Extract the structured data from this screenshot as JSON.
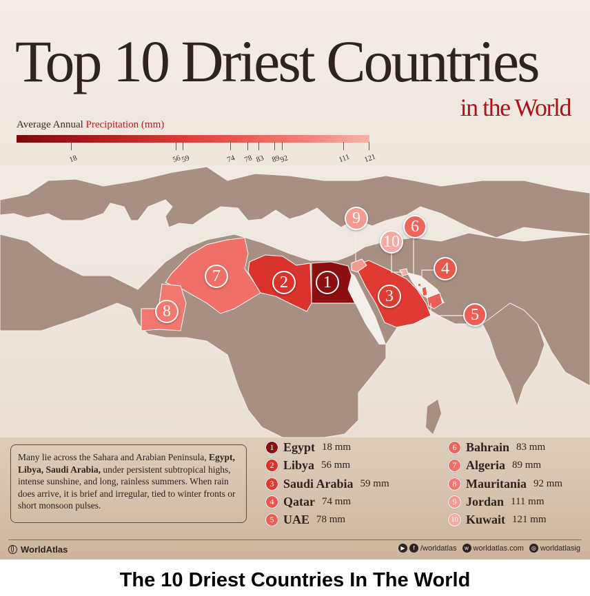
{
  "title": {
    "main": "Top 10 Driest Countries",
    "sub": "in the World"
  },
  "legend": {
    "label_prefix": "Average Annual",
    "label_accent": "Precipitation (mm)",
    "ticks": [
      "18",
      "56",
      "59",
      "74",
      "78",
      "83",
      "89",
      "92",
      "111",
      "121"
    ],
    "scale_min": 0,
    "scale_max": 121
  },
  "map": {
    "land_color": "#a88f84",
    "water_color": "#f3eeea",
    "markers": [
      {
        "rank": "1",
        "country": "Egypt"
      },
      {
        "rank": "2",
        "country": "Libya"
      },
      {
        "rank": "3",
        "country": "Saudi Arabia"
      },
      {
        "rank": "4",
        "country": "Qatar"
      },
      {
        "rank": "5",
        "country": "UAE"
      },
      {
        "rank": "6",
        "country": "Bahrain"
      },
      {
        "rank": "7",
        "country": "Algeria"
      },
      {
        "rank": "8",
        "country": "Mauritania"
      },
      {
        "rank": "9",
        "country": "Jordan"
      },
      {
        "rank": "10",
        "country": "Kuwait"
      }
    ]
  },
  "info": {
    "text_before": "Many lie across the Sahara and Arabian Peninsula, ",
    "bold": "Egypt, Libya, Saudi Arabia,",
    "text_after": " under persistent subtropical highs, intense sunshine, and long, rainless summers. When rain does arrive, it is brief and irregular, tied to winter fronts or short monsoon pulses."
  },
  "ranking": [
    {
      "rank": "1",
      "country": "Egypt",
      "value": "18 mm",
      "color": "#8e0f0f"
    },
    {
      "rank": "2",
      "country": "Libya",
      "value": "56 mm",
      "color": "#d9332c"
    },
    {
      "rank": "3",
      "country": "Saudi Arabia",
      "value": "59 mm",
      "color": "#df3b33"
    },
    {
      "rank": "4",
      "country": "Qatar",
      "value": "74 mm",
      "color": "#e9564d"
    },
    {
      "rank": "5",
      "country": "UAE",
      "value": "78 mm",
      "color": "#ec5e55"
    },
    {
      "rank": "6",
      "country": "Bahrain",
      "value": "83 mm",
      "color": "#ee655c"
    },
    {
      "rank": "7",
      "country": "Algeria",
      "value": "89 mm",
      "color": "#f07068"
    },
    {
      "rank": "8",
      "country": "Mauritania",
      "value": "92 mm",
      "color": "#f2786f"
    },
    {
      "rank": "9",
      "country": "Jordan",
      "value": "111 mm",
      "color": "#f59a91"
    },
    {
      "rank": "10",
      "country": "Kuwait",
      "value": "121 mm",
      "color": "#f7aaa2"
    }
  ],
  "footer": {
    "brand": "WorldAtlas",
    "social_1": "/worldatlas",
    "social_2": "worldatlas.com",
    "social_3": "worldatlasig"
  },
  "caption": "The 10 Driest Countries In The World"
}
